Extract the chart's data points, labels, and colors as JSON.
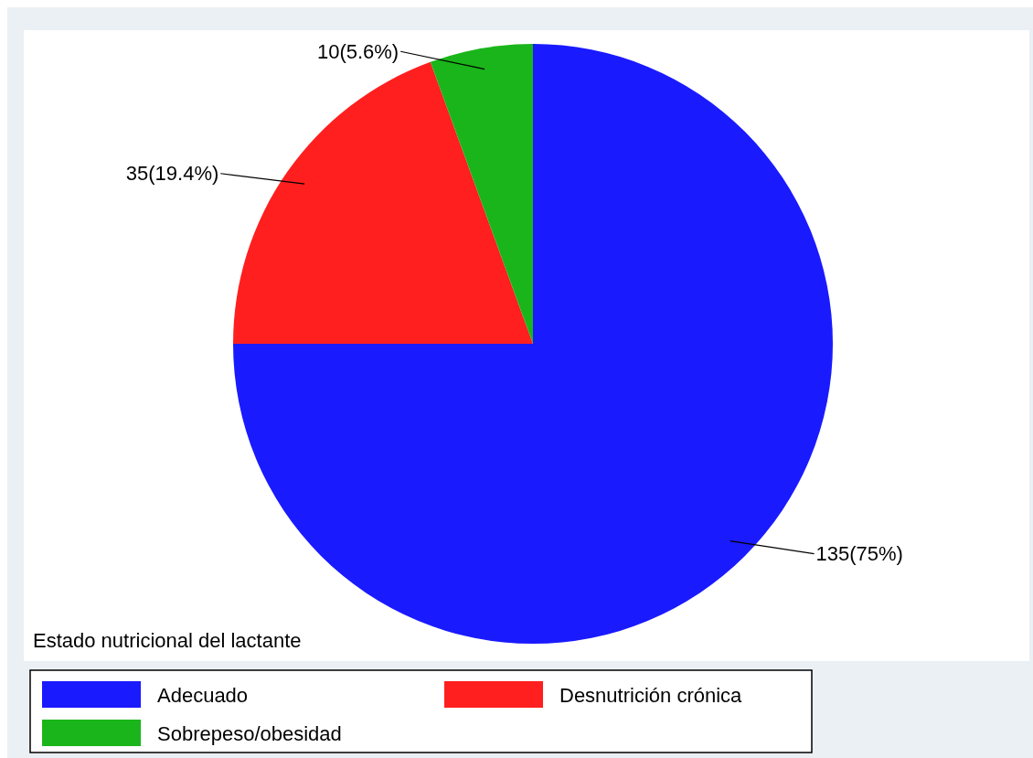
{
  "chart_data": {
    "type": "pie",
    "title": "Estado nutricional del lactante",
    "categories": [
      "Adecuado",
      "Desnutrición crónica",
      "Sobrepeso/obesidad"
    ],
    "values": [
      135,
      35,
      10
    ],
    "colors": [
      "#1a1aff",
      "#ff1f1f",
      "#1ab51a"
    ],
    "value_labels": [
      "135(75%)",
      "35(19.4%)",
      "10(5.6%)"
    ],
    "legend": "bottom"
  }
}
